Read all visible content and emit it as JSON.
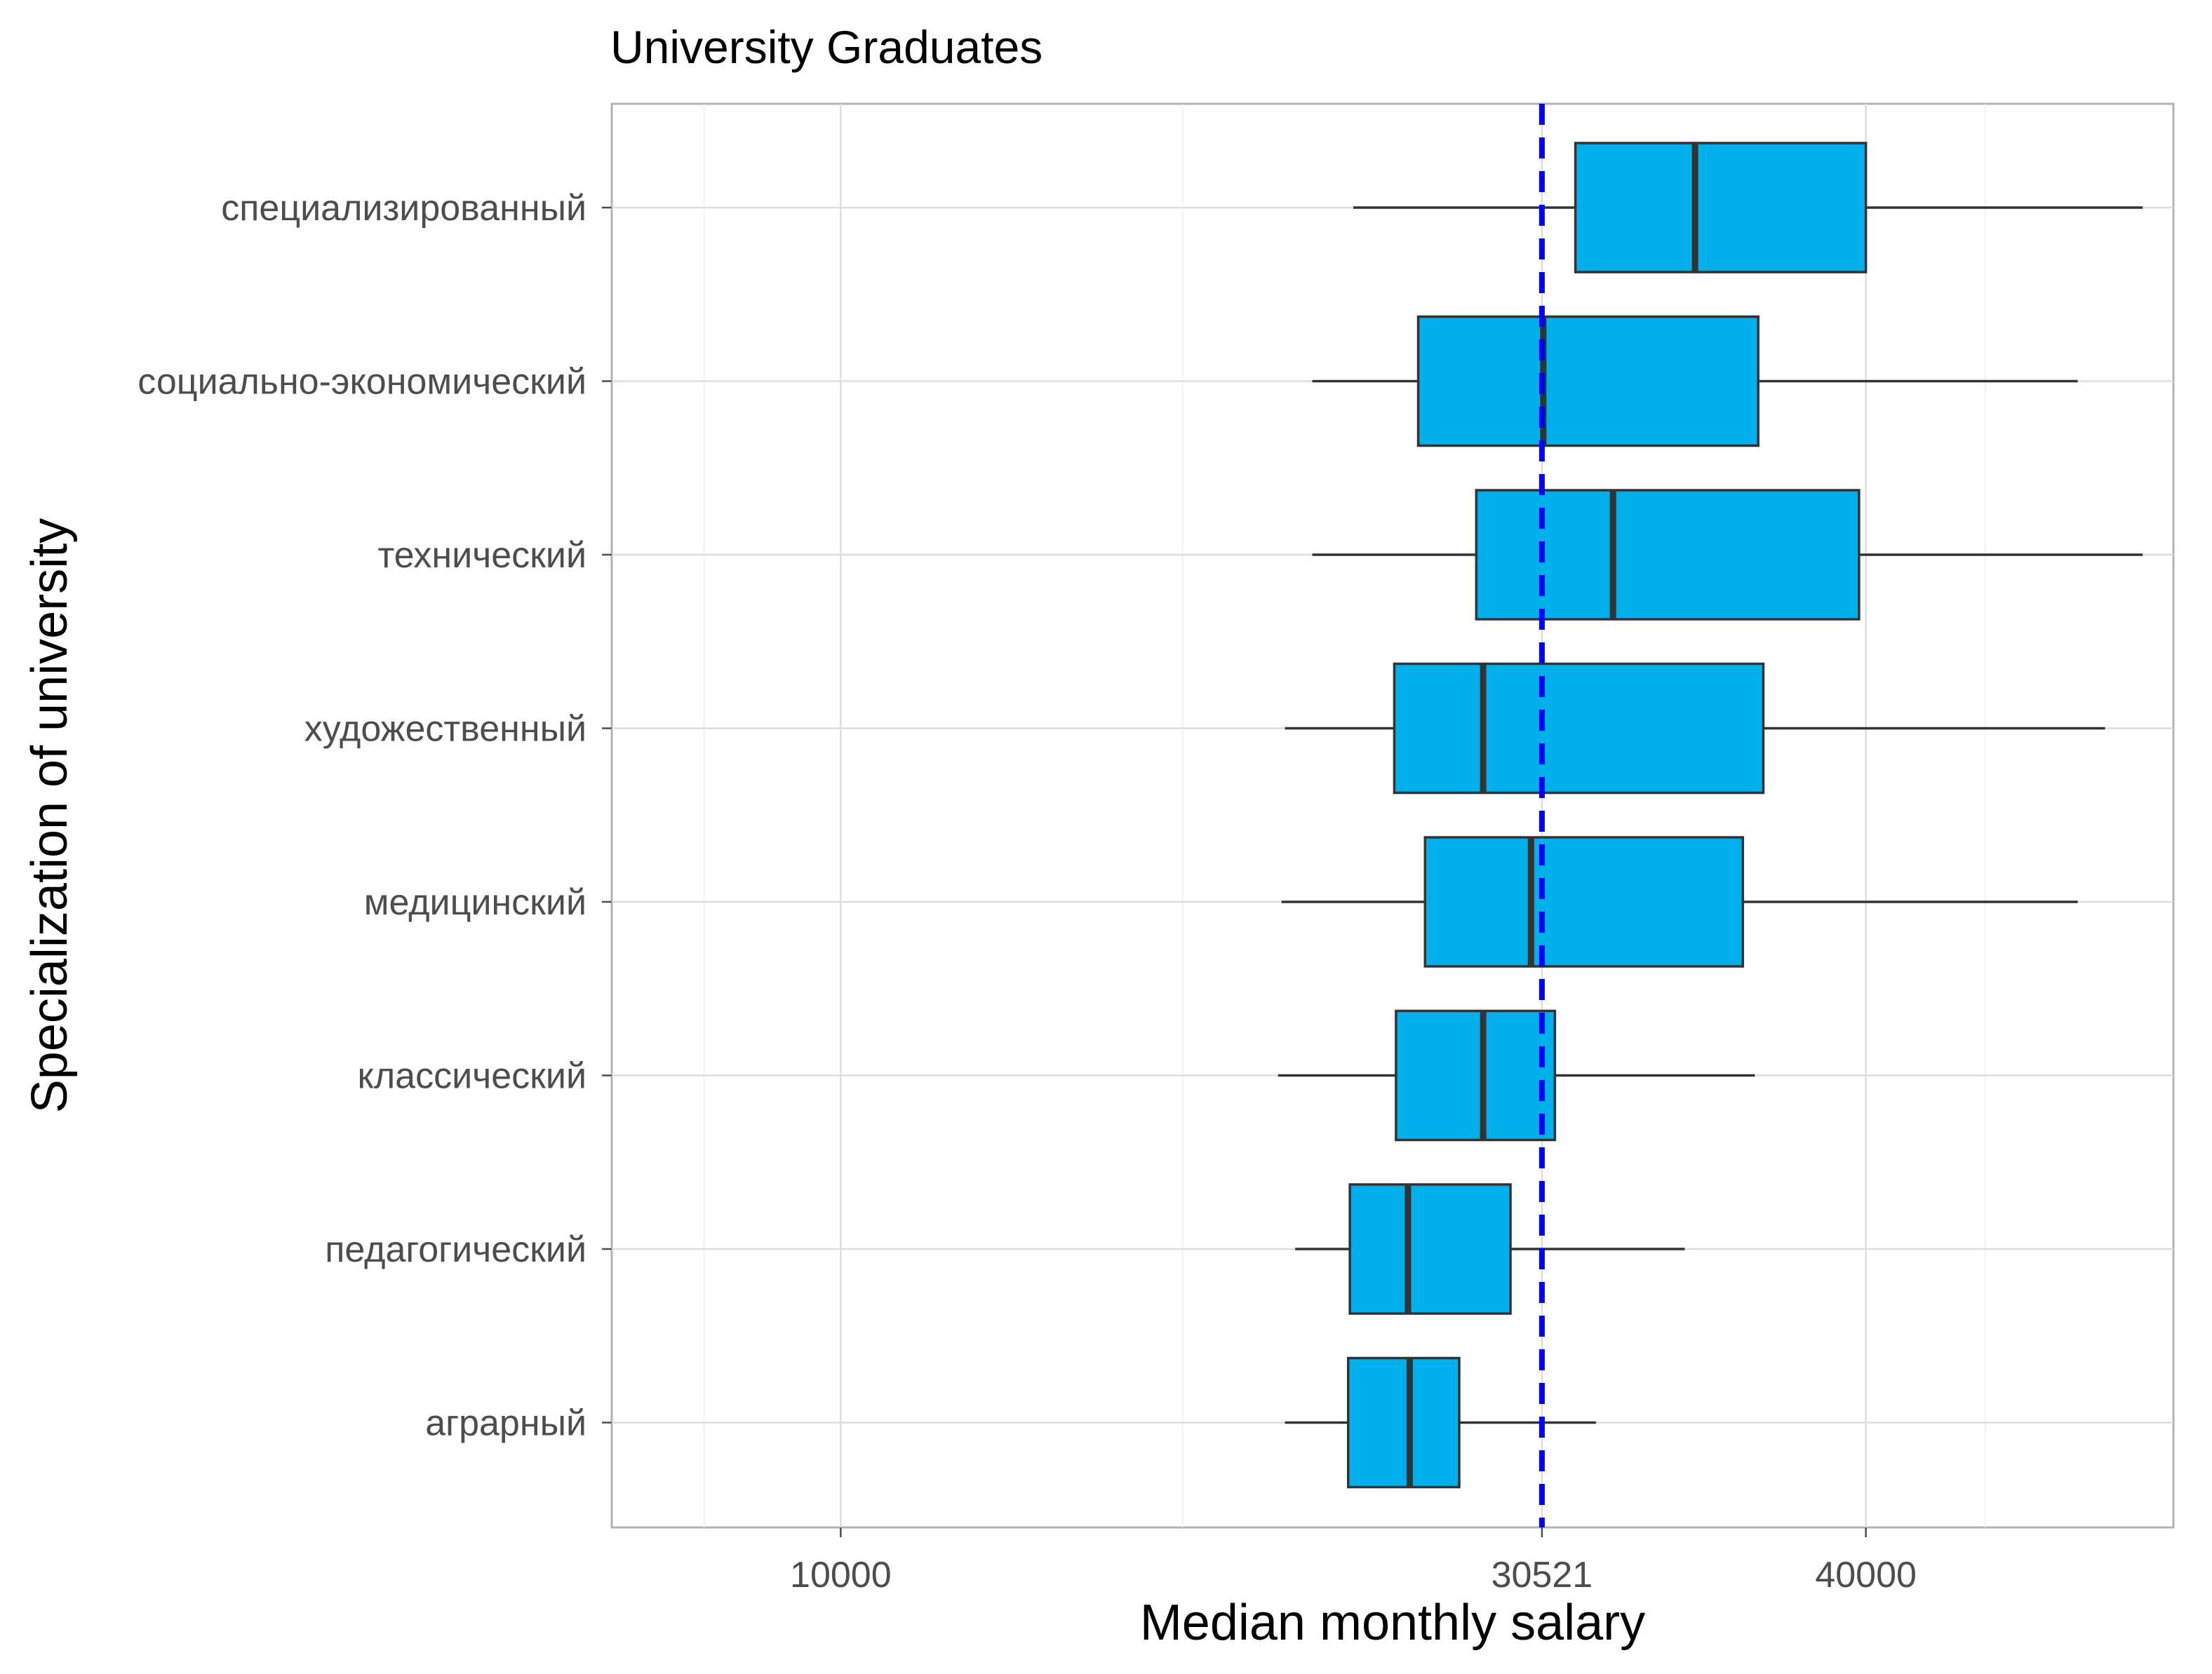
{
  "chart_data": {
    "type": "boxplot",
    "orientation": "horizontal",
    "title": "University Graduates",
    "xlabel": "Median monthly salary",
    "ylabel": "Specialization of university",
    "xlim": [
      3300,
      49000
    ],
    "x_ticks": [
      10000,
      30521,
      40000
    ],
    "x_minor_ticks": [
      6000,
      20000,
      43500
    ],
    "reference_line": {
      "value": 30521,
      "color": "#0000ff",
      "style": "dashed"
    },
    "box_fill": "#00b0ed",
    "box_stroke": "#333333",
    "grid": true,
    "categories": [
      "специализированный",
      "социально-экономический",
      "технический",
      "художественный",
      "медицинский",
      "классический",
      "педагогический",
      "аграрный"
    ],
    "boxes": [
      {
        "min": 25000,
        "q1": 31500,
        "median": 35000,
        "q3": 40000,
        "max": 48100
      },
      {
        "min": 23800,
        "q1": 26900,
        "median": 30560,
        "q3": 36850,
        "max": 46200
      },
      {
        "min": 23800,
        "q1": 28600,
        "median": 32600,
        "q3": 39800,
        "max": 48100
      },
      {
        "min": 23000,
        "q1": 26200,
        "median": 28800,
        "q3": 37000,
        "max": 47000
      },
      {
        "min": 22900,
        "q1": 27100,
        "median": 30200,
        "q3": 36400,
        "max": 46200
      },
      {
        "min": 22800,
        "q1": 26250,
        "median": 28800,
        "q3": 30900,
        "max": 36750
      },
      {
        "min": 23300,
        "q1": 24900,
        "median": 26600,
        "q3": 29600,
        "max": 34700
      },
      {
        "min": 23000,
        "q1": 24850,
        "median": 26650,
        "q3": 28100,
        "max": 32100
      }
    ]
  }
}
